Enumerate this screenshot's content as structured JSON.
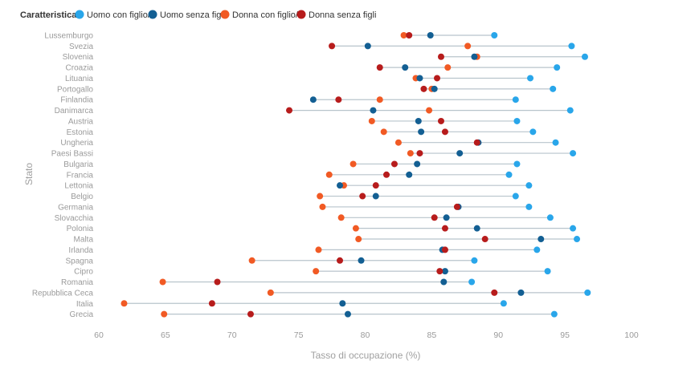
{
  "chart_data": {
    "type": "dumbbell",
    "legend": {
      "title": "Caratteristica",
      "placement": "top-left",
      "series": [
        {
          "key": "uomo_con",
          "name": "Uomo con figlio/i",
          "color": "#29a6ea"
        },
        {
          "key": "uomo_senza",
          "name": "Uomo senza figli",
          "color": "#135f93"
        },
        {
          "key": "donna_con",
          "name": "Donna con figlio/i",
          "color": "#f15a24"
        },
        {
          "key": "donna_senza",
          "name": "Donna senza figli",
          "color": "#b71c1c"
        }
      ]
    },
    "xlabel": "Tasso di occupazione (%)",
    "ylabel": "Stato",
    "xlim": [
      60,
      100
    ],
    "xticks": [
      60,
      65,
      70,
      75,
      80,
      85,
      90,
      95,
      100
    ],
    "connector_color": "#b8c4cc",
    "rows": [
      {
        "stato": "Lussemburgo",
        "uomo_con": 89.7,
        "uomo_senza": 84.9,
        "donna_con": 82.9,
        "donna_senza": 83.3
      },
      {
        "stato": "Svezia",
        "uomo_con": 95.5,
        "uomo_senza": 80.2,
        "donna_con": 87.7,
        "donna_senza": 77.5
      },
      {
        "stato": "Slovenia",
        "uomo_con": 96.5,
        "uomo_senza": 88.2,
        "donna_con": 88.4,
        "donna_senza": 85.7
      },
      {
        "stato": "Croazia",
        "uomo_con": 94.4,
        "uomo_senza": 83.0,
        "donna_con": 86.2,
        "donna_senza": 81.1
      },
      {
        "stato": "Lituania",
        "uomo_con": 92.4,
        "uomo_senza": 84.1,
        "donna_con": 83.8,
        "donna_senza": 85.4
      },
      {
        "stato": "Portogallo",
        "uomo_con": 94.1,
        "uomo_senza": 85.2,
        "donna_con": 85.0,
        "donna_senza": 84.4
      },
      {
        "stato": "Finlandia",
        "uomo_con": 91.3,
        "uomo_senza": 76.1,
        "donna_con": 81.1,
        "donna_senza": 78.0
      },
      {
        "stato": "Danimarca",
        "uomo_con": 95.4,
        "uomo_senza": 80.6,
        "donna_con": 84.8,
        "donna_senza": 74.3
      },
      {
        "stato": "Austria",
        "uomo_con": 91.4,
        "uomo_senza": 84.0,
        "donna_con": 80.5,
        "donna_senza": 85.7
      },
      {
        "stato": "Estonia",
        "uomo_con": 92.6,
        "uomo_senza": 84.2,
        "donna_con": 81.4,
        "donna_senza": 86.0
      },
      {
        "stato": "Ungheria",
        "uomo_con": 94.3,
        "uomo_senza": 88.5,
        "donna_con": 82.5,
        "donna_senza": 88.4
      },
      {
        "stato": "Paesi Bassi",
        "uomo_con": 95.6,
        "uomo_senza": 87.1,
        "donna_con": 83.4,
        "donna_senza": 84.1
      },
      {
        "stato": "Bulgaria",
        "uomo_con": 91.4,
        "uomo_senza": 83.9,
        "donna_con": 79.1,
        "donna_senza": 82.2
      },
      {
        "stato": "Francia",
        "uomo_con": 90.8,
        "uomo_senza": 83.3,
        "donna_con": 77.3,
        "donna_senza": 81.6
      },
      {
        "stato": "Lettonia",
        "uomo_con": 92.3,
        "uomo_senza": 78.1,
        "donna_con": 78.4,
        "donna_senza": 80.8
      },
      {
        "stato": "Belgio",
        "uomo_con": 91.3,
        "uomo_senza": 80.8,
        "donna_con": 76.6,
        "donna_senza": 79.8
      },
      {
        "stato": "Germania",
        "uomo_con": 92.3,
        "uomo_senza": 87.0,
        "donna_con": 76.8,
        "donna_senza": 86.9
      },
      {
        "stato": "Slovacchia",
        "uomo_con": 93.9,
        "uomo_senza": 86.1,
        "donna_con": 78.2,
        "donna_senza": 85.2
      },
      {
        "stato": "Polonia",
        "uomo_con": 95.6,
        "uomo_senza": 88.4,
        "donna_con": 79.3,
        "donna_senza": 86.0
      },
      {
        "stato": "Malta",
        "uomo_con": 95.9,
        "uomo_senza": 93.2,
        "donna_con": 79.5,
        "donna_senza": 89.0
      },
      {
        "stato": "Irlanda",
        "uomo_con": 92.9,
        "uomo_senza": 85.8,
        "donna_con": 76.5,
        "donna_senza": 86.0
      },
      {
        "stato": "Spagna",
        "uomo_con": 88.2,
        "uomo_senza": 79.7,
        "donna_con": 71.5,
        "donna_senza": 78.1
      },
      {
        "stato": "Cipro",
        "uomo_con": 93.7,
        "uomo_senza": 86.0,
        "donna_con": 76.3,
        "donna_senza": 85.6
      },
      {
        "stato": "Romania",
        "uomo_con": 88.0,
        "uomo_senza": 85.9,
        "donna_con": 64.8,
        "donna_senza": 68.9
      },
      {
        "stato": "Repubblica Ceca",
        "uomo_con": 96.7,
        "uomo_senza": 91.7,
        "donna_con": 72.9,
        "donna_senza": 89.7
      },
      {
        "stato": "Italia",
        "uomo_con": 90.4,
        "uomo_senza": 78.3,
        "donna_con": 61.9,
        "donna_senza": 68.5
      },
      {
        "stato": "Grecia",
        "uomo_con": 94.2,
        "uomo_senza": 78.7,
        "donna_con": 64.9,
        "donna_senza": 71.4
      }
    ]
  }
}
